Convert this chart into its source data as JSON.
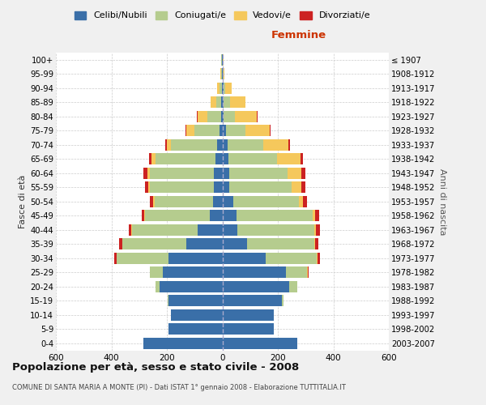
{
  "age_groups": [
    "0-4",
    "5-9",
    "10-14",
    "15-19",
    "20-24",
    "25-29",
    "30-34",
    "35-39",
    "40-44",
    "45-49",
    "50-54",
    "55-59",
    "60-64",
    "65-69",
    "70-74",
    "75-79",
    "80-84",
    "85-89",
    "90-94",
    "95-99",
    "100+"
  ],
  "birth_years": [
    "2003-2007",
    "1998-2002",
    "1993-1997",
    "1988-1992",
    "1983-1987",
    "1978-1982",
    "1973-1977",
    "1968-1972",
    "1963-1967",
    "1958-1962",
    "1953-1957",
    "1948-1952",
    "1943-1947",
    "1938-1942",
    "1933-1937",
    "1928-1932",
    "1923-1927",
    "1918-1922",
    "1913-1917",
    "1908-1912",
    "≤ 1907"
  ],
  "males_celibi": [
    285,
    195,
    185,
    195,
    225,
    215,
    195,
    130,
    90,
    45,
    35,
    30,
    30,
    25,
    20,
    10,
    5,
    3,
    2,
    1,
    1
  ],
  "males_coniugati": [
    0,
    0,
    0,
    2,
    15,
    45,
    185,
    230,
    235,
    235,
    210,
    230,
    230,
    215,
    165,
    90,
    50,
    20,
    8,
    3,
    2
  ],
  "males_vedovi": [
    0,
    0,
    0,
    0,
    0,
    0,
    2,
    2,
    3,
    3,
    5,
    8,
    10,
    15,
    15,
    30,
    35,
    20,
    8,
    2,
    1
  ],
  "males_divorziati": [
    0,
    0,
    0,
    0,
    1,
    2,
    8,
    10,
    10,
    8,
    10,
    12,
    15,
    10,
    5,
    3,
    2,
    0,
    0,
    0,
    0
  ],
  "females_nubili": [
    270,
    185,
    185,
    215,
    240,
    230,
    155,
    90,
    55,
    50,
    40,
    25,
    25,
    22,
    18,
    12,
    5,
    5,
    3,
    1,
    1
  ],
  "females_coniugate": [
    0,
    0,
    0,
    5,
    30,
    75,
    185,
    240,
    275,
    275,
    235,
    225,
    210,
    175,
    130,
    70,
    40,
    22,
    8,
    3,
    1
  ],
  "females_vedove": [
    0,
    0,
    0,
    0,
    0,
    2,
    3,
    5,
    8,
    10,
    15,
    35,
    50,
    85,
    90,
    90,
    80,
    55,
    22,
    3,
    1
  ],
  "females_divorziate": [
    0,
    0,
    0,
    0,
    1,
    3,
    10,
    12,
    15,
    15,
    15,
    15,
    15,
    8,
    5,
    3,
    2,
    0,
    0,
    0,
    0
  ],
  "colors_celibi": "#3a6fa8",
  "colors_coniugati": "#b5cc8e",
  "colors_vedovi": "#f5c85c",
  "colors_divorziati": "#cc2222",
  "xlim": 600,
  "bg_color": "#f0f0f0",
  "plot_bg": "#ffffff",
  "title": "Popolazione per età, sesso e stato civile - 2008",
  "subtitle": "COMUNE DI SANTA MARIA A MONTE (PI) - Dati ISTAT 1° gennaio 2008 - Elaborazione TUTTITALIA.IT",
  "legend_labels": [
    "Celibi/Nubili",
    "Coniugati/e",
    "Vedovi/e",
    "Divorziati/e"
  ],
  "ylabel_left": "Fasce di età",
  "ylabel_right": "Anni di nascita",
  "header_right": "Femmine"
}
